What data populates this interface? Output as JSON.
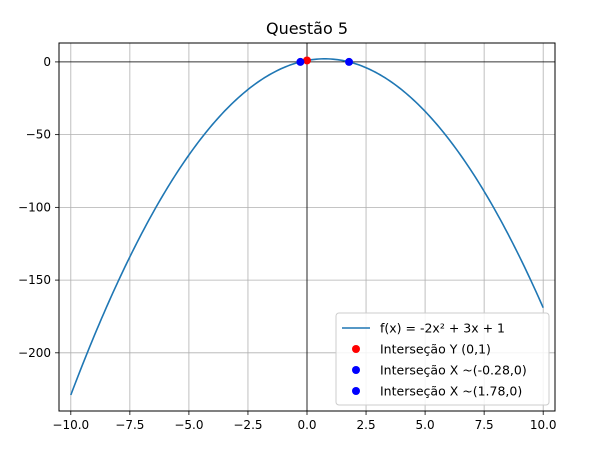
{
  "chart_data": {
    "type": "line",
    "title": "Questão 5",
    "xlabel": "",
    "ylabel": "",
    "xlim": [
      -10.5,
      10.5
    ],
    "ylim": [
      -240,
      13
    ],
    "grid": true,
    "legend_position": "bottom-right",
    "x_ticks": [
      -10.0,
      -7.5,
      -5.0,
      -2.5,
      0.0,
      2.5,
      5.0,
      7.5,
      10.0
    ],
    "x_tick_labels": [
      "−10.0",
      "−7.5",
      "−5.0",
      "−2.5",
      "0.0",
      "2.5",
      "5.0",
      "7.5",
      "10.0"
    ],
    "y_ticks": [
      0,
      -50,
      -100,
      -150,
      -200
    ],
    "y_tick_labels": [
      "0",
      "−50",
      "−100",
      "−150",
      "−200"
    ],
    "series": [
      {
        "name": "f(x) = -2x² + 3x + 1",
        "kind": "line",
        "color": "#1f77b4",
        "coefficients": [
          -2,
          3,
          1
        ],
        "x_range": [
          -10,
          10
        ]
      }
    ],
    "points": [
      {
        "name": "Interseção Y (0,1)",
        "x": 0,
        "y": 1,
        "color": "#ff0000"
      },
      {
        "name": "Interseção X ~(-0.28,0)",
        "x": -0.28,
        "y": 0,
        "color": "#0000ff"
      },
      {
        "name": "Interseção X ~(1.78,0)",
        "x": 1.78,
        "y": 0,
        "color": "#0000ff"
      }
    ],
    "reference_lines": {
      "x": 0,
      "y": 0,
      "color": "#000000"
    }
  }
}
